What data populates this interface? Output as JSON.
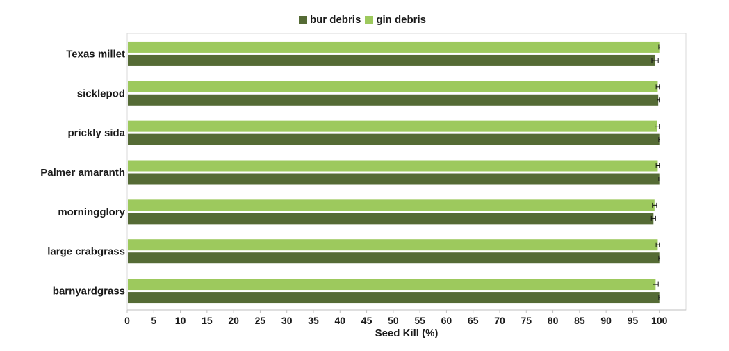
{
  "chart_data": {
    "type": "bar",
    "orientation": "horizontal",
    "categories": [
      "Texas millet",
      "sicklepod",
      "prickly sida",
      "Palmer amaranth",
      "morningglory",
      "large crabgrass",
      "barnyardgrass"
    ],
    "series": [
      {
        "name": "bur debris",
        "color": "#556b35",
        "values": [
          99.2,
          99.8,
          100,
          100,
          98.9,
          100,
          100
        ],
        "errors": [
          0.6,
          0.2,
          0.1,
          0.1,
          0.4,
          0.1,
          0.1
        ]
      },
      {
        "name": "gin debris",
        "color": "#9dc95d",
        "values": [
          100,
          99.7,
          99.6,
          99.7,
          99.1,
          99.7,
          99.3
        ],
        "errors": [
          0.1,
          0.3,
          0.4,
          0.3,
          0.4,
          0.3,
          0.5
        ]
      }
    ],
    "xlabel": "Seed Kill (%)",
    "ylabel": "",
    "xlim": [
      0,
      105
    ],
    "xticks": [
      0,
      5,
      10,
      15,
      20,
      25,
      30,
      35,
      40,
      45,
      50,
      55,
      60,
      65,
      70,
      75,
      80,
      85,
      90,
      95,
      100
    ],
    "legend_position": "top-center",
    "grid": false
  }
}
